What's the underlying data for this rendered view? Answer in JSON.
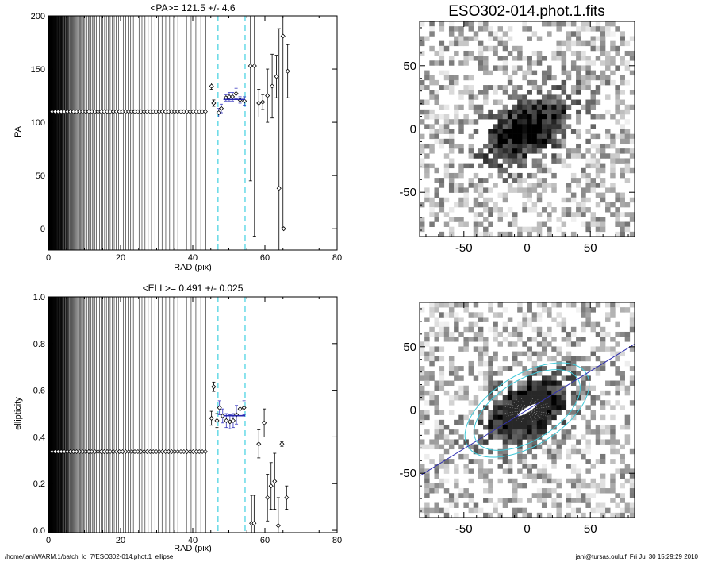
{
  "footer": {
    "path": "/home/jani/WARM.1/batch_lo_7/ESO302-014.phot.1_ellipse",
    "stamp": "jani@tursas.oulu.fi  Fri Jul 30 15:29:29 2010"
  },
  "chart_data": [
    {
      "id": "pa",
      "type": "scatter",
      "title": "<PA>= 121.5 +/-   4.6",
      "xlabel": "RAD (pix)",
      "ylabel": "PA",
      "xlim": [
        0,
        80
      ],
      "ylim": [
        -20,
        200
      ],
      "xticks": [
        0,
        20,
        40,
        60,
        80
      ],
      "yticks": [
        0,
        50,
        100,
        150,
        200
      ],
      "fixed_value": 110,
      "fixed_rmax": 44,
      "fit_range": [
        47,
        54.5
      ],
      "fit_value": 121.5,
      "points": [
        {
          "x": 45.2,
          "y": 134,
          "err": 3
        },
        {
          "x": 45.8,
          "y": 118,
          "err": 3
        },
        {
          "x": 47.2,
          "y": 109,
          "err": 4
        },
        {
          "x": 47.9,
          "y": 113,
          "err": 4
        },
        {
          "x": 49.2,
          "y": 123,
          "err": 3
        },
        {
          "x": 50.1,
          "y": 124,
          "err": 4
        },
        {
          "x": 51.0,
          "y": 124,
          "err": 4
        },
        {
          "x": 52.0,
          "y": 127,
          "err": 5
        },
        {
          "x": 53.1,
          "y": 121,
          "err": 3
        },
        {
          "x": 54.3,
          "y": 120,
          "err": 4
        },
        {
          "x": 56.0,
          "y": 153,
          "err": 108
        },
        {
          "x": 57.1,
          "y": 153,
          "err": 160
        },
        {
          "x": 58.3,
          "y": 118,
          "err": 13
        },
        {
          "x": 59.4,
          "y": 119,
          "err": 7
        },
        {
          "x": 60.7,
          "y": 125,
          "err": 25
        },
        {
          "x": 62.0,
          "y": 134,
          "err": 30
        },
        {
          "x": 63.2,
          "y": 143,
          "err": 20
        },
        {
          "x": 63.9,
          "y": 38,
          "err": 150
        },
        {
          "x": 65.0,
          "y": 181,
          "err": 180
        },
        {
          "x": 65.2,
          "y": 0,
          "err": 0
        },
        {
          "x": 66.3,
          "y": 148,
          "err": 25
        }
      ]
    },
    {
      "id": "ell",
      "type": "scatter",
      "title": "<ELL>= 0.491 +/-  0.025",
      "xlabel": "RAD (pix)",
      "ylabel": "ellipticity",
      "xlim": [
        0,
        80
      ],
      "ylim": [
        -0.01,
        1.0
      ],
      "xticks": [
        0,
        20,
        40,
        60,
        80
      ],
      "yticks": [
        0.0,
        0.2,
        0.4,
        0.6,
        0.8,
        1.0
      ],
      "fixed_value": 0.337,
      "fixed_rmax": 44,
      "fit_range": [
        47,
        54.5
      ],
      "fit_value": 0.491,
      "points": [
        {
          "x": 45.2,
          "y": 0.48,
          "err": 0.03
        },
        {
          "x": 45.8,
          "y": 0.615,
          "err": 0.02
        },
        {
          "x": 46.7,
          "y": 0.47,
          "err": 0.03
        },
        {
          "x": 47.4,
          "y": 0.525,
          "err": 0.03
        },
        {
          "x": 48.3,
          "y": 0.49,
          "err": 0.03
        },
        {
          "x": 49.3,
          "y": 0.47,
          "err": 0.03
        },
        {
          "x": 50.3,
          "y": 0.465,
          "err": 0.03
        },
        {
          "x": 51.2,
          "y": 0.47,
          "err": 0.03
        },
        {
          "x": 52.1,
          "y": 0.495,
          "err": 0.04
        },
        {
          "x": 53.1,
          "y": 0.52,
          "err": 0.03
        },
        {
          "x": 54.2,
          "y": 0.525,
          "err": 0.03
        },
        {
          "x": 56.3,
          "y": 0.03,
          "err": 0.12
        },
        {
          "x": 57.0,
          "y": 0.03,
          "err": 0.12
        },
        {
          "x": 58.3,
          "y": 0.37,
          "err": 0.06
        },
        {
          "x": 59.8,
          "y": 0.46,
          "err": 0.06
        },
        {
          "x": 60.7,
          "y": 0.14,
          "err": 0.1
        },
        {
          "x": 61.7,
          "y": 0.19,
          "err": 0.1
        },
        {
          "x": 62.7,
          "y": 0.21,
          "err": 0.12
        },
        {
          "x": 63.7,
          "y": 0.02,
          "err": 0.12
        },
        {
          "x": 64.7,
          "y": 0.37,
          "err": 0.01
        },
        {
          "x": 66.0,
          "y": 0.14,
          "err": 0.05
        }
      ]
    },
    {
      "id": "img1",
      "type": "heatmap",
      "title": "ESO302-014.phot.1.fits",
      "xlim": [
        -85,
        85
      ],
      "ylim": [
        -85,
        85
      ],
      "xticks": [
        -50,
        0,
        50
      ],
      "yticks": [
        -50,
        0,
        50
      ]
    },
    {
      "id": "img2",
      "type": "heatmap",
      "title": "",
      "xlim": [
        -85,
        85
      ],
      "ylim": [
        -85,
        85
      ],
      "xticks": [
        -50,
        0,
        50
      ],
      "yticks": [
        -50,
        0,
        50
      ],
      "pa_deg": 121.5,
      "ellipticity": 0.491,
      "ellipse_inner_a": 47,
      "ellipse_outer_a": 55
    }
  ]
}
